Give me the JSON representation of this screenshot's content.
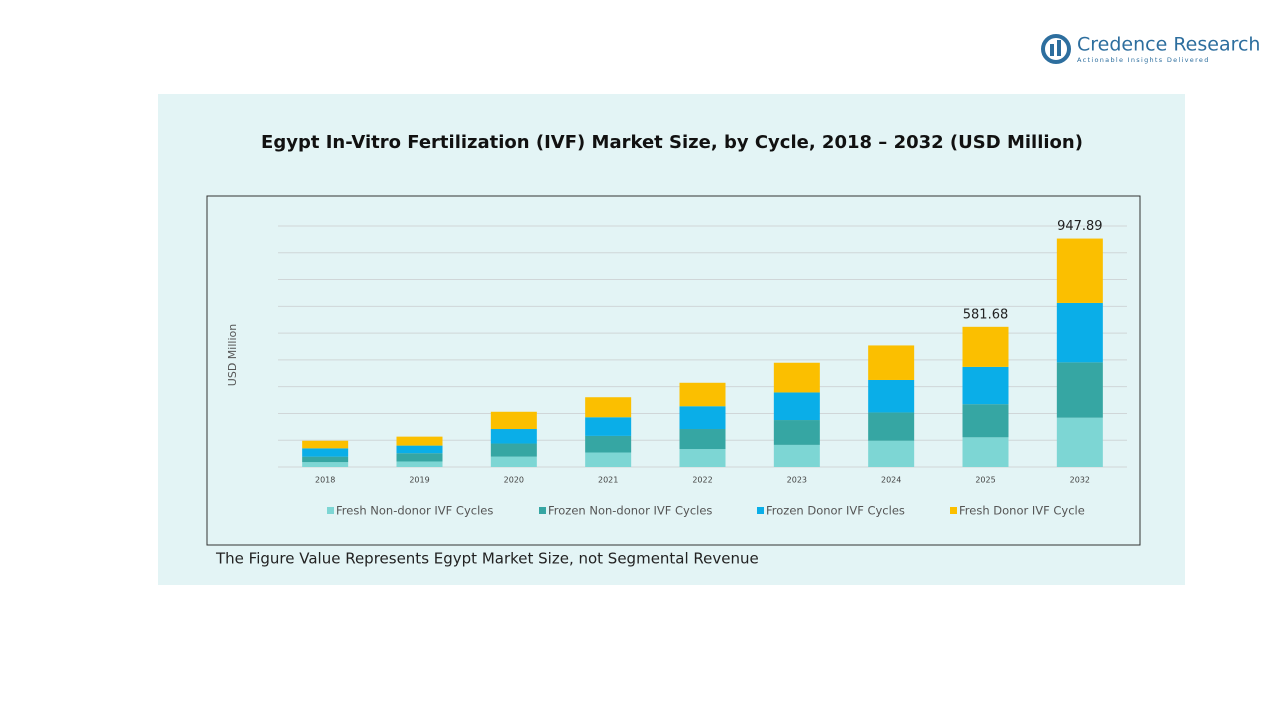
{
  "logo": {
    "name": "Credence Research",
    "tagline": "Actionable Insights Delivered"
  },
  "chart_data": {
    "type": "stacked_bar",
    "title": "Egypt In-Vitro Fertilization (IVF) Market Size, by Cycle, 2018 – 2032 (USD Million)",
    "y_label": "USD Million",
    "footnote": "The Figure Value Represents Egypt Market Size, not Segmental Revenue",
    "categories": [
      "2018",
      "2019",
      "2020",
      "2021",
      "2022",
      "2023",
      "2024",
      "2025",
      "2032"
    ],
    "series": [
      {
        "name": "Fresh Non-donor IVF Cycles",
        "color": "#7dd6d4",
        "values": [
          20.1,
          22.9,
          43.0,
          60.2,
          74.5,
          91.7,
          108.9,
          123.2,
          204.6
        ]
      },
      {
        "name": "Frozen Non-donor IVF Cycles",
        "color": "#36a6a3",
        "values": [
          22.9,
          34.4,
          54.4,
          68.8,
          83.1,
          103.1,
          117.5,
          137.5,
          229.7
        ]
      },
      {
        "name": "Frozen Donor IVF Cycles",
        "color": "#0aaee8",
        "values": [
          34.4,
          31.5,
          60.2,
          77.4,
          94.5,
          114.6,
          134.7,
          154.7,
          246.4
        ]
      },
      {
        "name": "Fresh Donor IVF Cycle",
        "color": "#fbbf00",
        "values": [
          31.5,
          37.2,
          71.6,
          83.1,
          97.4,
          123.2,
          143.3,
          166.28,
          267.19
        ]
      }
    ],
    "totals": [
      {
        "category": "2025",
        "value": 581.68
      },
      {
        "category": "2032",
        "value": 947.89
      }
    ],
    "ylim": [
      0,
      1000
    ],
    "grid": true,
    "legend": "bottom"
  }
}
